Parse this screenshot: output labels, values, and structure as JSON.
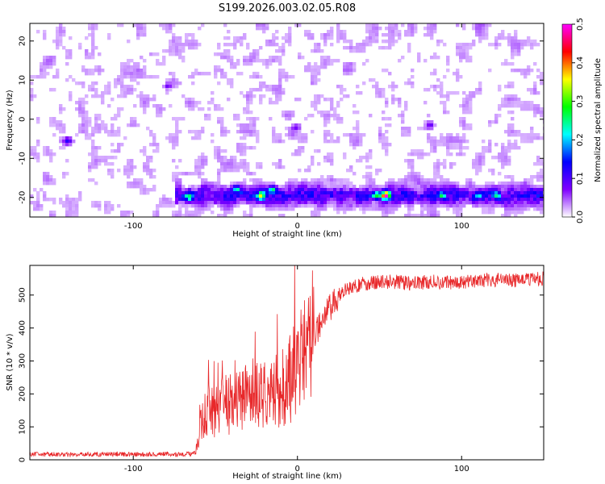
{
  "figure": {
    "title": "S199.2026.003.02.05.R08"
  },
  "chart_data": [
    {
      "type": "heatmap",
      "xlabel": "Height of straight line (km)",
      "ylabel": "Frequency (Hz)",
      "xlim": [
        -163,
        150
      ],
      "ylim": [
        -25,
        24.5
      ],
      "xticks": [
        -100,
        0,
        100
      ],
      "xtick_labels": [
        "-100",
        "0",
        "100"
      ],
      "yticks": [
        -20,
        -10,
        0,
        10,
        20
      ],
      "ytick_labels": [
        "-20",
        "-10",
        "0",
        "10",
        "20"
      ],
      "colorbar": {
        "label": "Normalized spectral amplitude",
        "range": [
          0,
          0.5
        ],
        "ticks": [
          0,
          0.1,
          0.2,
          0.3,
          0.4,
          0.5
        ],
        "tick_labels": [
          "0.0",
          "0.1",
          "0.2",
          "0.3",
          "0.4",
          "0.5"
        ],
        "colormap": [
          "#ffffff",
          "#8000ff",
          "#0000ff",
          "#00ffff",
          "#00ff00",
          "#ffff00",
          "#ff0000",
          "#ff00ff"
        ]
      },
      "background_amplitude": 0.03,
      "band": {
        "frequency": -19.5,
        "x_start": -75,
        "x_end": 150,
        "amplitude": 0.11
      },
      "hotspots": [
        {
          "x": -66,
          "f": -20,
          "a": 0.15
        },
        {
          "x": -37,
          "f": -18,
          "a": 0.16
        },
        {
          "x": -22,
          "f": -19.5,
          "a": 0.24
        },
        {
          "x": -15,
          "f": -18,
          "a": 0.16
        },
        {
          "x": 48,
          "f": -19.5,
          "a": 0.21
        },
        {
          "x": 54,
          "f": -19.5,
          "a": 0.42
        },
        {
          "x": 88,
          "f": -19.5,
          "a": 0.14
        },
        {
          "x": 110,
          "f": -19.5,
          "a": 0.16
        },
        {
          "x": 121,
          "f": -19.5,
          "a": 0.18
        },
        {
          "x": -140,
          "f": -5.5,
          "a": 0.1
        },
        {
          "x": -79,
          "f": 8.5,
          "a": 0.08
        },
        {
          "x": -1,
          "f": -2,
          "a": 0.07
        },
        {
          "x": 81,
          "f": -1.5,
          "a": 0.08
        }
      ]
    },
    {
      "type": "line",
      "xlabel": "Height of straight line (km)",
      "ylabel": "SNR (10 * v/v)",
      "xlim": [
        -163,
        150
      ],
      "ylim": [
        0,
        590
      ],
      "xticks": [
        -100,
        0,
        100
      ],
      "xtick_labels": [
        "-100",
        "0",
        "100"
      ],
      "yticks": [
        0,
        100,
        200,
        300,
        400,
        500
      ],
      "ytick_labels": [
        "0",
        "100",
        "200",
        "300",
        "400",
        "500"
      ],
      "series": [
        {
          "color": "#e8282a",
          "x": [
            -163,
            -150,
            -140,
            -130,
            -120,
            -110,
            -100,
            -90,
            -80,
            -70,
            -62,
            -60,
            -58,
            -55,
            -50,
            -45,
            -40,
            -35,
            -30,
            -25,
            -20,
            -15,
            -10,
            -5,
            0,
            5,
            10,
            15,
            20,
            25,
            30,
            40,
            50,
            60,
            70,
            80,
            90,
            100,
            110,
            120,
            130,
            140,
            150
          ],
          "y": [
            16,
            17,
            15,
            17,
            16,
            18,
            16,
            17,
            18,
            16,
            20,
            70,
            130,
            150,
            150,
            165,
            170,
            180,
            200,
            205,
            200,
            215,
            215,
            240,
            290,
            340,
            380,
            420,
            460,
            500,
            520,
            535,
            540,
            540,
            535,
            540,
            540,
            538,
            545,
            545,
            545,
            545,
            550
          ]
        }
      ]
    }
  ]
}
